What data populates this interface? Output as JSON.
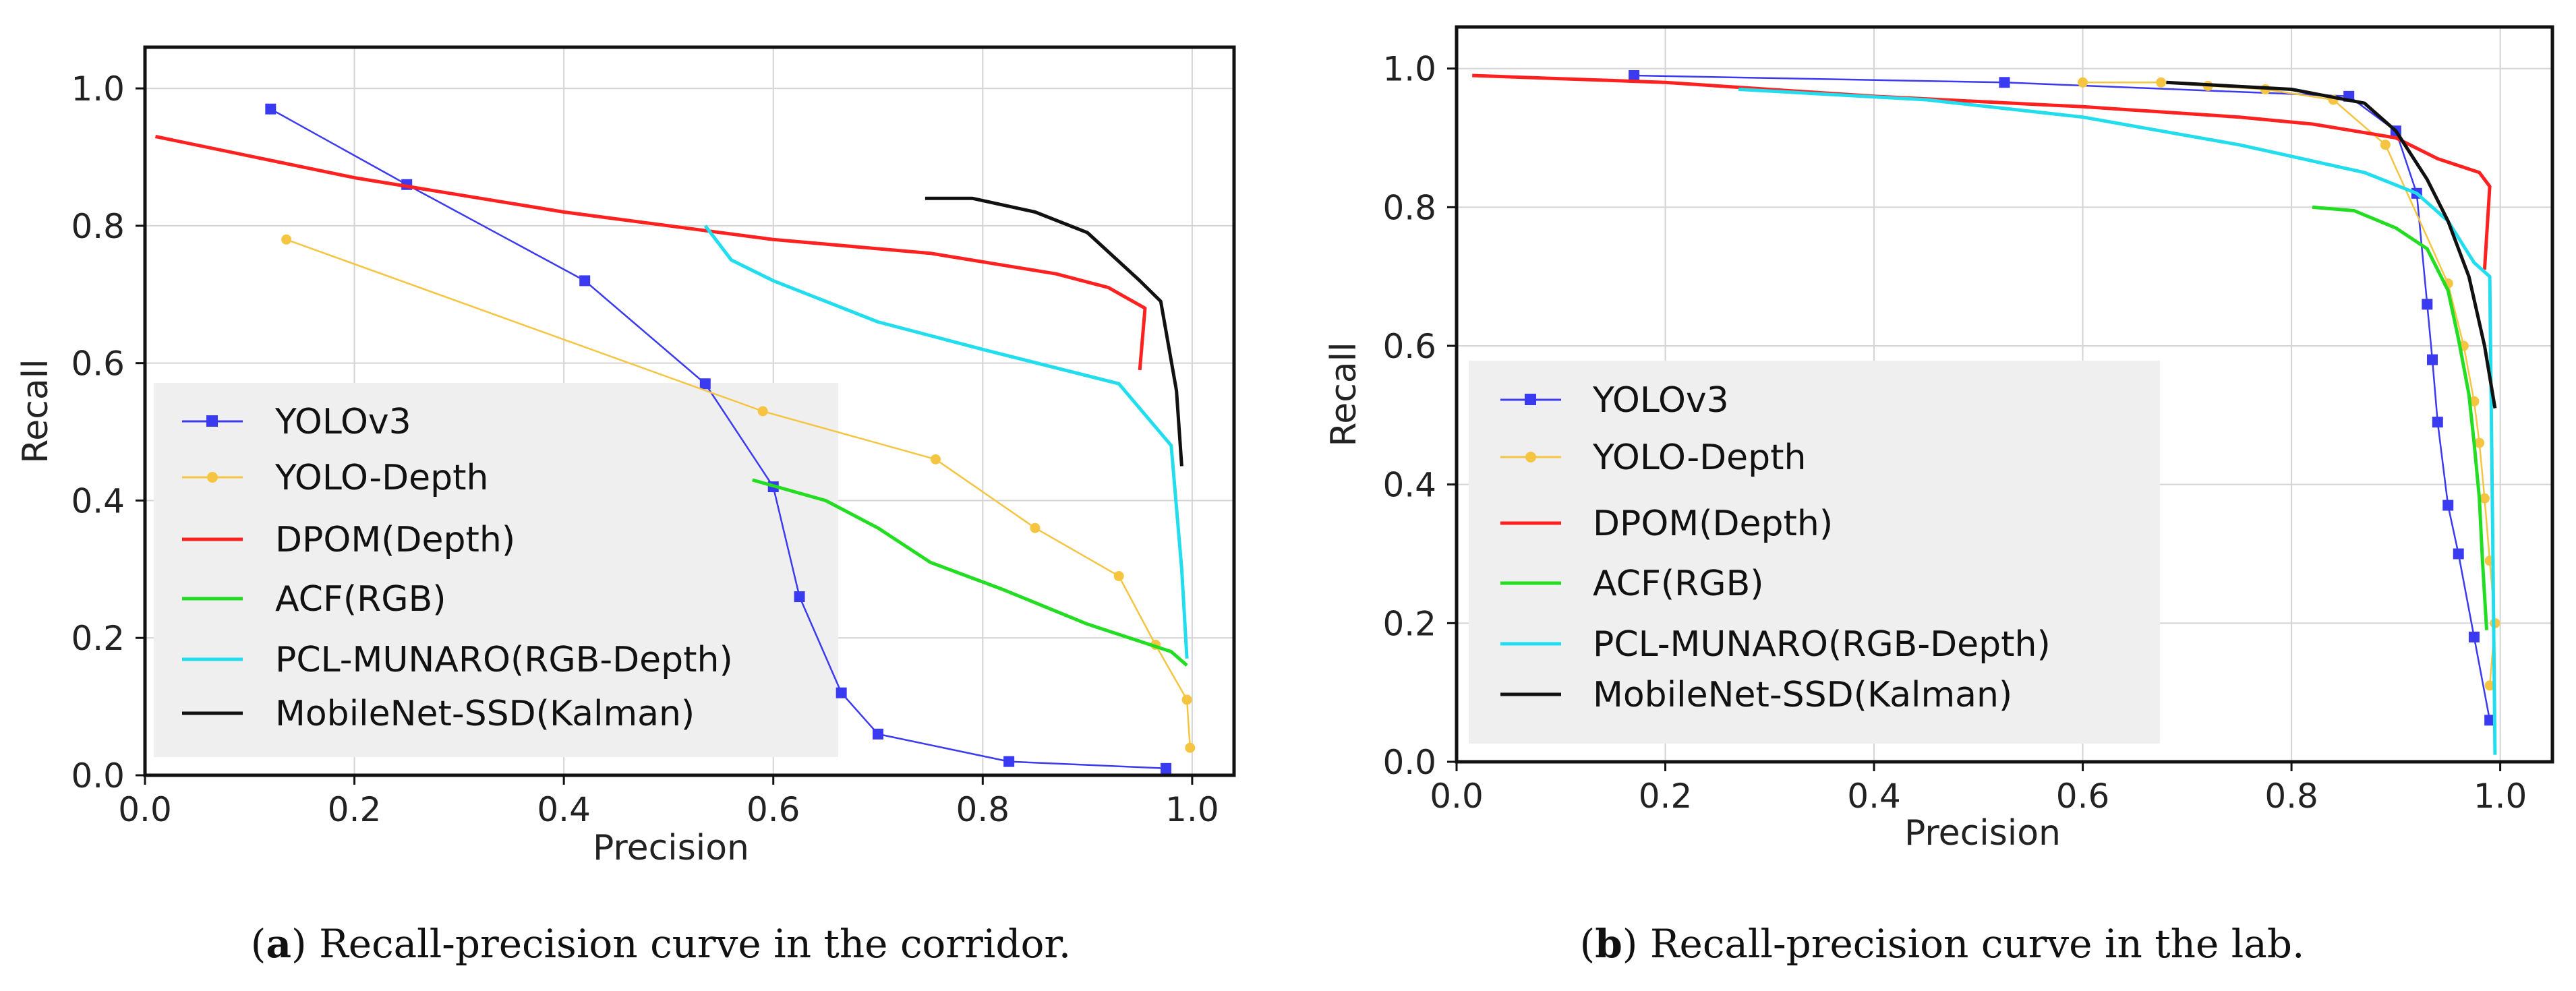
{
  "chart_data": [
    {
      "type": "line",
      "id": "a",
      "xlabel": "Precision",
      "ylabel": "Recall",
      "xlim": [
        0.0,
        1.04
      ],
      "ylim": [
        0.0,
        1.06
      ],
      "xticks": [
        "0.0",
        "0.2",
        "0.4",
        "0.6",
        "0.8",
        "1.0"
      ],
      "yticks": [
        "0.0",
        "0.2",
        "0.4",
        "0.6",
        "0.8",
        "1.0"
      ],
      "grid": true,
      "legend_position": "lower-left",
      "caption_label": "a",
      "caption_text": ") Recall-precision curve in the corridor.",
      "series": [
        {
          "name": "YOLOv3",
          "color": "#3a3af0",
          "marker": "square",
          "x": [
            0.12,
            0.25,
            0.42,
            0.535,
            0.6,
            0.625,
            0.665,
            0.7,
            0.825,
            0.975
          ],
          "y": [
            0.97,
            0.86,
            0.72,
            0.57,
            0.42,
            0.26,
            0.12,
            0.06,
            0.02,
            0.01
          ]
        },
        {
          "name": "YOLO-Depth",
          "color": "#f5c542",
          "marker": "dot",
          "x": [
            0.135,
            0.59,
            0.755,
            0.85,
            0.93,
            0.965,
            0.995,
            0.998
          ],
          "y": [
            0.78,
            0.53,
            0.46,
            0.36,
            0.29,
            0.19,
            0.11,
            0.04
          ]
        },
        {
          "name": "DPOM(Depth)",
          "color": "#ff2020",
          "marker": "none",
          "x": [
            0.01,
            0.2,
            0.4,
            0.6,
            0.75,
            0.87,
            0.92,
            0.955,
            0.95
          ],
          "y": [
            0.93,
            0.87,
            0.82,
            0.78,
            0.76,
            0.73,
            0.71,
            0.68,
            0.59
          ]
        },
        {
          "name": "ACF(RGB)",
          "color": "#22dd22",
          "marker": "none",
          "x": [
            0.58,
            0.65,
            0.7,
            0.75,
            0.82,
            0.9,
            0.98,
            0.995
          ],
          "y": [
            0.43,
            0.4,
            0.36,
            0.31,
            0.27,
            0.22,
            0.18,
            0.16
          ]
        },
        {
          "name": "PCL-MUNARO(RGB-Depth)",
          "color": "#22ddee",
          "marker": "none",
          "x": [
            0.535,
            0.56,
            0.6,
            0.7,
            0.8,
            0.93,
            0.98,
            0.99,
            0.995
          ],
          "y": [
            0.8,
            0.75,
            0.72,
            0.66,
            0.62,
            0.57,
            0.48,
            0.3,
            0.17
          ]
        },
        {
          "name": "MobileNet-SSD(Kalman)",
          "color": "#111111",
          "marker": "none",
          "x": [
            0.745,
            0.79,
            0.85,
            0.9,
            0.95,
            0.97,
            0.985,
            0.99
          ],
          "y": [
            0.84,
            0.84,
            0.82,
            0.79,
            0.72,
            0.69,
            0.56,
            0.45
          ]
        }
      ]
    },
    {
      "type": "line",
      "id": "b",
      "xlabel": "Precision",
      "ylabel": "Recall",
      "xlim": [
        0.0,
        1.05
      ],
      "ylim": [
        0.0,
        1.06
      ],
      "xticks": [
        "0.0",
        "0.2",
        "0.4",
        "0.6",
        "0.8",
        "1.0"
      ],
      "yticks": [
        "0.0",
        "0.2",
        "0.4",
        "0.6",
        "0.8",
        "1.0"
      ],
      "grid": true,
      "legend_position": "lower-left",
      "caption_label": "b",
      "caption_text": ") Recall-precision curve in the lab.",
      "series": [
        {
          "name": "YOLOv3",
          "color": "#3a3af0",
          "marker": "square",
          "x": [
            0.17,
            0.525,
            0.855,
            0.9,
            0.92,
            0.93,
            0.935,
            0.94,
            0.95,
            0.96,
            0.975,
            0.99
          ],
          "y": [
            0.99,
            0.98,
            0.96,
            0.91,
            0.82,
            0.66,
            0.58,
            0.49,
            0.37,
            0.3,
            0.18,
            0.06
          ]
        },
        {
          "name": "YOLO-Depth",
          "color": "#f5c542",
          "marker": "dot",
          "x": [
            0.6,
            0.675,
            0.72,
            0.775,
            0.84,
            0.89,
            0.95,
            0.965,
            0.975,
            0.98,
            0.985,
            0.99,
            0.995,
            0.99
          ],
          "y": [
            0.98,
            0.98,
            0.975,
            0.97,
            0.955,
            0.89,
            0.69,
            0.6,
            0.52,
            0.46,
            0.38,
            0.29,
            0.2,
            0.11
          ]
        },
        {
          "name": "DPOM(Depth)",
          "color": "#ff2020",
          "marker": "none",
          "x": [
            0.015,
            0.2,
            0.4,
            0.6,
            0.75,
            0.82,
            0.86,
            0.9,
            0.94,
            0.98,
            0.99,
            0.985
          ],
          "y": [
            0.99,
            0.98,
            0.96,
            0.945,
            0.93,
            0.92,
            0.91,
            0.9,
            0.87,
            0.85,
            0.83,
            0.71
          ]
        },
        {
          "name": "ACF(RGB)",
          "color": "#22dd22",
          "marker": "none",
          "x": [
            0.82,
            0.86,
            0.9,
            0.93,
            0.95,
            0.96,
            0.97,
            0.975,
            0.98,
            0.983,
            0.987
          ],
          "y": [
            0.8,
            0.795,
            0.77,
            0.74,
            0.68,
            0.61,
            0.53,
            0.46,
            0.38,
            0.29,
            0.19
          ]
        },
        {
          "name": "PCL-MUNARO(RGB-Depth)",
          "color": "#22ddee",
          "marker": "none",
          "x": [
            0.27,
            0.45,
            0.6,
            0.75,
            0.87,
            0.92,
            0.95,
            0.975,
            0.99,
            0.993,
            0.995
          ],
          "y": [
            0.97,
            0.955,
            0.93,
            0.89,
            0.85,
            0.82,
            0.78,
            0.72,
            0.7,
            0.3,
            0.01
          ]
        },
        {
          "name": "MobileNet-SSD(Kalman)",
          "color": "#111111",
          "marker": "none",
          "x": [
            0.68,
            0.8,
            0.87,
            0.9,
            0.93,
            0.95,
            0.97,
            0.985,
            0.995
          ],
          "y": [
            0.98,
            0.97,
            0.95,
            0.91,
            0.84,
            0.78,
            0.7,
            0.6,
            0.51
          ]
        }
      ]
    }
  ]
}
